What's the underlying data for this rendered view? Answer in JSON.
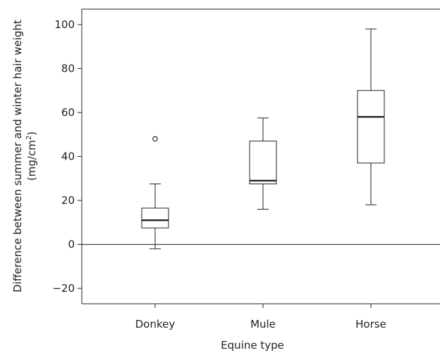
{
  "chart_data": {
    "type": "box",
    "xlabel": "Equine type",
    "ylabel_line1": "Difference between summer and winter hair weight",
    "ylabel_line2_prefix": "(mg/cm",
    "ylabel_line2_sup": "2",
    "ylabel_line2_suffix": ")",
    "ylim": [
      -27,
      107
    ],
    "yticks": [
      -20,
      0,
      20,
      40,
      60,
      80,
      100
    ],
    "ytick_labels": [
      "−20",
      "0",
      "20",
      "40",
      "60",
      "80",
      "100"
    ],
    "reference_line_y": 0,
    "categories": [
      "Donkey",
      "Mule",
      "Horse"
    ],
    "boxes": [
      {
        "category": "Donkey",
        "min": -2,
        "q1": 7.5,
        "median": 11,
        "q3": 16.5,
        "max": 27.5,
        "outliers": [
          48
        ]
      },
      {
        "category": "Mule",
        "min": 16,
        "q1": 27.5,
        "median": 29,
        "q3": 47,
        "max": 57.5,
        "outliers": []
      },
      {
        "category": "Horse",
        "min": 18,
        "q1": 37,
        "median": 58,
        "q3": 70,
        "max": 98,
        "outliers": []
      }
    ]
  }
}
